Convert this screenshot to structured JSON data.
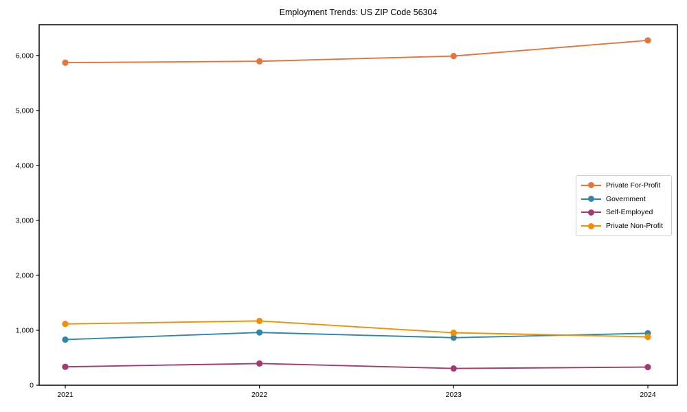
{
  "title": "Employment Trends: US ZIP Code 56304",
  "chart_data": {
    "type": "line",
    "x": [
      "2021",
      "2022",
      "2023",
      "2024"
    ],
    "series": [
      {
        "name": "Private For-Profit",
        "color": "#E8743B",
        "values": [
          5870,
          5895,
          5990,
          6275
        ]
      },
      {
        "name": "Government",
        "color": "#2E86AB",
        "values": [
          830,
          960,
          865,
          945
        ]
      },
      {
        "name": "Self-Employed",
        "color": "#A23B72",
        "values": [
          335,
          395,
          305,
          330
        ]
      },
      {
        "name": "Private Non-Profit",
        "color": "#F18F01",
        "values": [
          1115,
          1170,
          955,
          880
        ]
      }
    ],
    "ylim": [
      0,
      6560
    ],
    "yticks": [
      0,
      1000,
      2000,
      3000,
      4000,
      5000,
      6000
    ],
    "ytick_labels": [
      "0",
      "1,000",
      "2,000",
      "3,000",
      "4,000",
      "5,000",
      "6,000"
    ],
    "grid": false,
    "legend_position": "center right",
    "marker": "circle"
  }
}
